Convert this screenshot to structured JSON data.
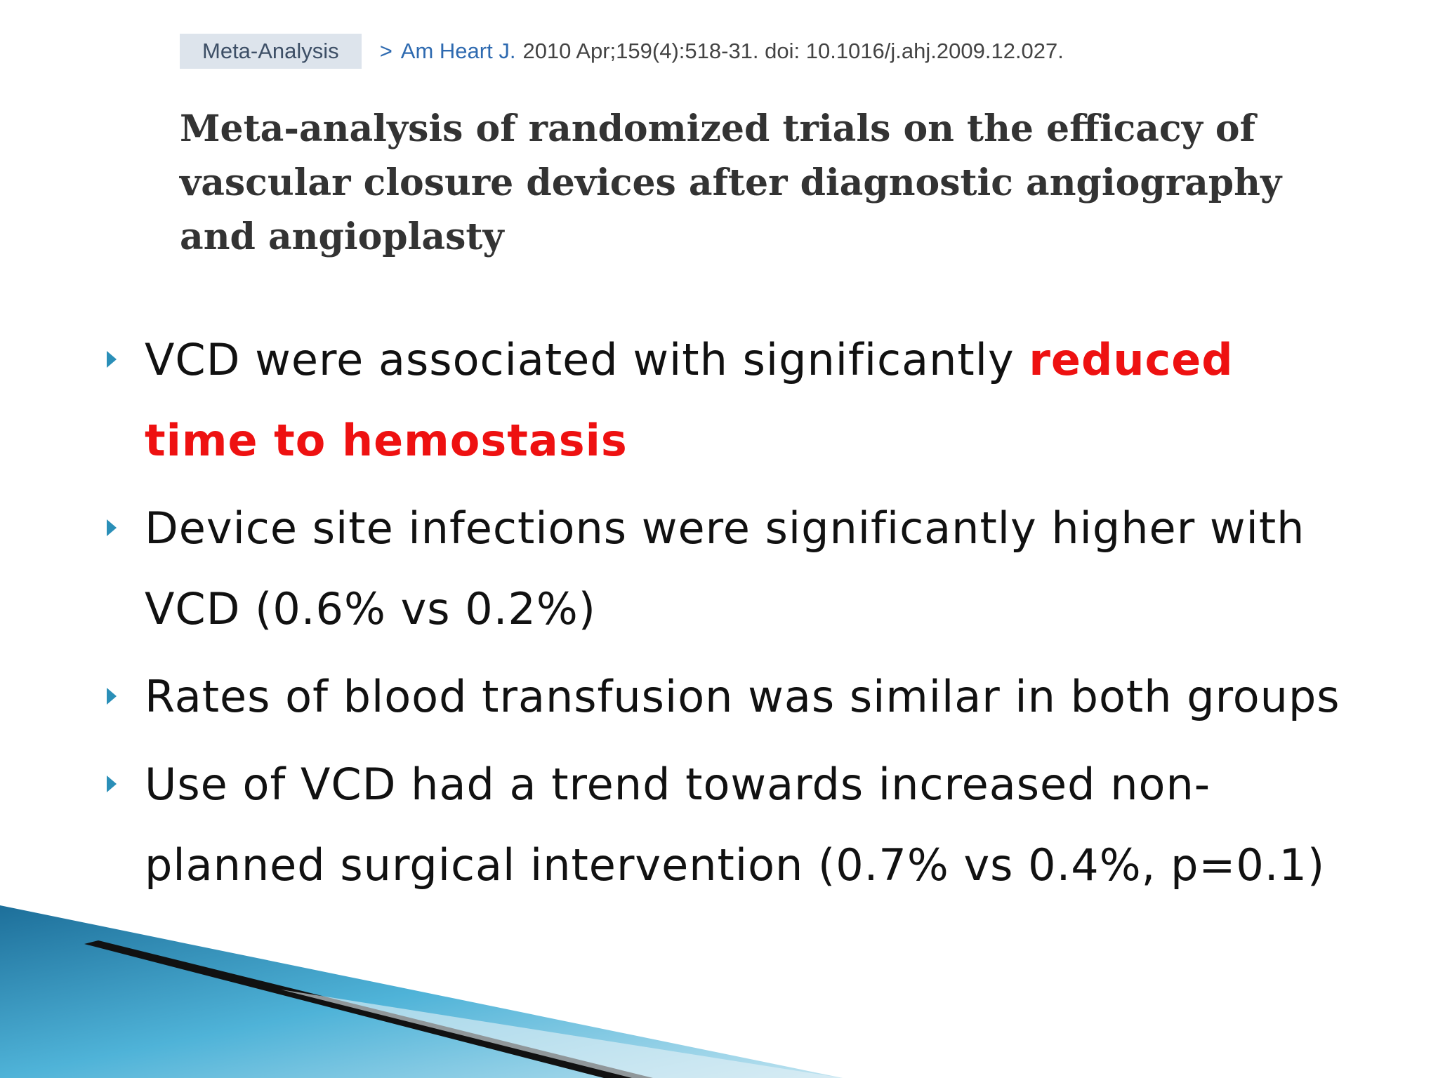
{
  "header": {
    "badge": "Meta-Analysis",
    "journal": "Am Heart J.",
    "citation": "2010 Apr;159(4):518-31. doi: 10.1016/j.ahj.2009.12.027.",
    "title": "Meta-analysis of randomized trials on the efficacy of vascular closure devices after diagnostic angiography and angioplasty"
  },
  "bullets": [
    {
      "parts": [
        {
          "text": "VCD were associated with significantly "
        },
        {
          "text": "reduced time to hemostasis",
          "highlight": true
        }
      ]
    },
    {
      "parts": [
        {
          "text": "Device site infections were significantly higher with VCD (0.6% vs 0.2%)"
        }
      ]
    },
    {
      "parts": [
        {
          "text": "Rates of blood transfusion was similar in both groups"
        }
      ]
    },
    {
      "parts": [
        {
          "text": "Use of  VCD had a trend towards increased non-planned surgical intervention (0.7% vs 0.4%, p=0.1)"
        }
      ]
    }
  ]
}
